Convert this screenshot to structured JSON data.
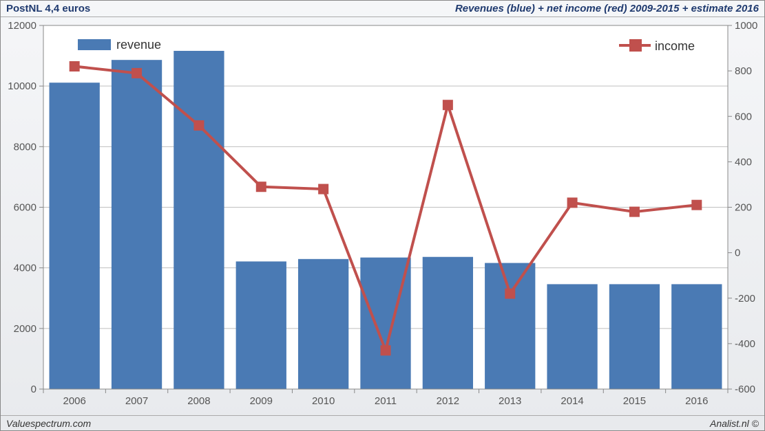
{
  "header": {
    "left": "PostNL 4,4 euros",
    "right": "Revenues (blue) + net income (red) 2009-2015 + estimate 2016"
  },
  "footer": {
    "left": "Valuespectrum.com",
    "right": "Analist.nl ©"
  },
  "chart": {
    "type": "bar+line",
    "categories": [
      "2006",
      "2007",
      "2008",
      "2009",
      "2010",
      "2011",
      "2012",
      "2013",
      "2014",
      "2015",
      "2016"
    ],
    "bar_series": {
      "label": "revenue",
      "color": "#4a7ab4",
      "border": "#4a7ab4",
      "values": [
        10100,
        10850,
        11150,
        4200,
        4280,
        4330,
        4350,
        4150,
        3450,
        3450,
        3450
      ]
    },
    "line_series": {
      "label": "income",
      "color": "#c0504d",
      "marker_size": 14,
      "line_width": 4,
      "values": [
        820,
        790,
        560,
        290,
        280,
        -430,
        650,
        -180,
        220,
        180,
        210
      ]
    },
    "y_left": {
      "min": 0,
      "max": 12000,
      "step": 2000
    },
    "y_right": {
      "min": -600,
      "max": 1000,
      "step": 200
    },
    "background_color": "#ffffff",
    "grid_color": "#bfbfbf",
    "bar_width_ratio": 0.8,
    "plot_border_color": "#888888",
    "axis_font_size": 15,
    "legend": {
      "revenue_box_color": "#4a7ab4",
      "income_box_color": "#c0504d",
      "font_size": 18
    }
  }
}
